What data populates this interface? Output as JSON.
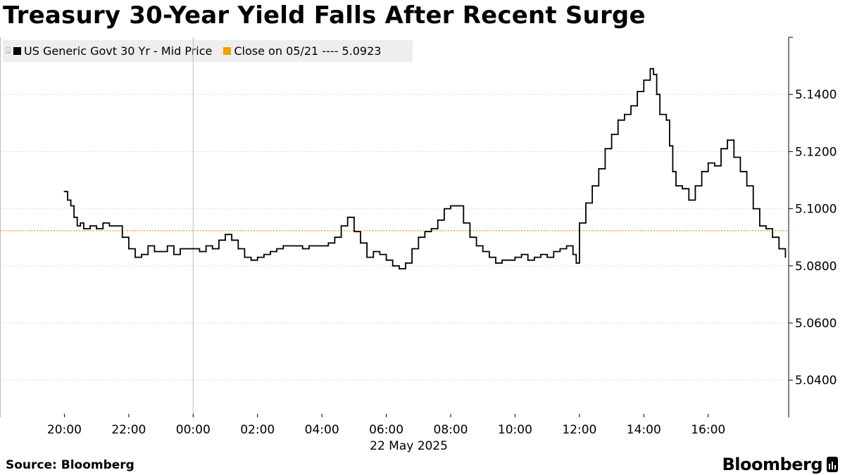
{
  "title": "Treasury 30-Year Yield Falls After Recent Surge",
  "source": "Source: Bloomberg",
  "brand": "Bloomberg",
  "colors": {
    "series": "#000000",
    "close_line": "#f5a000",
    "grid": "#cccccc",
    "legend_bg": "#eeeeee"
  },
  "legend": {
    "series_label": "US Generic Govt 30 Yr - Mid Price",
    "close_label": "Close on 05/21 ---- 5.0923"
  },
  "chart_data": {
    "type": "line",
    "title": "Treasury 30-Year Yield Falls After Recent Surge",
    "xlabel": "22 May 2025",
    "ylabel": "",
    "x_tick_labels": [
      "20:00",
      "22:00",
      "00:00",
      "02:00",
      "04:00",
      "06:00",
      "08:00",
      "10:00",
      "12:00",
      "14:00",
      "16:00"
    ],
    "x_tick_hours": [
      0,
      2,
      4,
      6,
      8,
      10,
      12,
      14,
      16,
      18,
      20
    ],
    "x_date_label": "22 May 2025",
    "x_range_hours_since_20:00": [
      -2,
      22.5
    ],
    "y_tick_labels": [
      "5.0400",
      "5.0600",
      "5.0800",
      "5.1000",
      "5.1200",
      "5.1400"
    ],
    "y_ticks": [
      5.04,
      5.06,
      5.08,
      5.1,
      5.12,
      5.14
    ],
    "ylim": [
      5.027,
      5.16
    ],
    "y_axis_side": "right",
    "grid": "horizontal dotted",
    "reference_line": {
      "name": "Close on 05/21",
      "value": 5.0923
    },
    "series": [
      {
        "name": "US Generic Govt 30 Yr - Mid Price",
        "points": [
          [
            0.0,
            5.106
          ],
          [
            0.1,
            5.103
          ],
          [
            0.2,
            5.101
          ],
          [
            0.3,
            5.097
          ],
          [
            0.4,
            5.094
          ],
          [
            0.5,
            5.095
          ],
          [
            0.6,
            5.093
          ],
          [
            0.8,
            5.094
          ],
          [
            1.0,
            5.093
          ],
          [
            1.2,
            5.095
          ],
          [
            1.4,
            5.094
          ],
          [
            1.6,
            5.094
          ],
          [
            1.8,
            5.09
          ],
          [
            2.0,
            5.086
          ],
          [
            2.2,
            5.083
          ],
          [
            2.4,
            5.084
          ],
          [
            2.6,
            5.087
          ],
          [
            2.8,
            5.085
          ],
          [
            3.0,
            5.085
          ],
          [
            3.2,
            5.087
          ],
          [
            3.4,
            5.084
          ],
          [
            3.6,
            5.086
          ],
          [
            3.8,
            5.086
          ],
          [
            4.0,
            5.086
          ],
          [
            4.2,
            5.085
          ],
          [
            4.4,
            5.087
          ],
          [
            4.6,
            5.086
          ],
          [
            4.8,
            5.089
          ],
          [
            5.0,
            5.091
          ],
          [
            5.2,
            5.089
          ],
          [
            5.4,
            5.086
          ],
          [
            5.6,
            5.083
          ],
          [
            5.8,
            5.082
          ],
          [
            6.0,
            5.083
          ],
          [
            6.2,
            5.084
          ],
          [
            6.4,
            5.085
          ],
          [
            6.6,
            5.086
          ],
          [
            6.8,
            5.087
          ],
          [
            7.0,
            5.087
          ],
          [
            7.2,
            5.087
          ],
          [
            7.4,
            5.086
          ],
          [
            7.6,
            5.087
          ],
          [
            7.8,
            5.087
          ],
          [
            8.0,
            5.087
          ],
          [
            8.2,
            5.088
          ],
          [
            8.4,
            5.09
          ],
          [
            8.6,
            5.094
          ],
          [
            8.8,
            5.097
          ],
          [
            9.0,
            5.092
          ],
          [
            9.2,
            5.088
          ],
          [
            9.4,
            5.083
          ],
          [
            9.6,
            5.085
          ],
          [
            9.8,
            5.084
          ],
          [
            10.0,
            5.082
          ],
          [
            10.2,
            5.08
          ],
          [
            10.4,
            5.079
          ],
          [
            10.6,
            5.081
          ],
          [
            10.8,
            5.086
          ],
          [
            11.0,
            5.09
          ],
          [
            11.2,
            5.092
          ],
          [
            11.4,
            5.093
          ],
          [
            11.6,
            5.096
          ],
          [
            11.8,
            5.1
          ],
          [
            12.0,
            5.101
          ],
          [
            12.2,
            5.101
          ],
          [
            12.4,
            5.095
          ],
          [
            12.6,
            5.09
          ],
          [
            12.8,
            5.087
          ],
          [
            13.0,
            5.085
          ],
          [
            13.2,
            5.083
          ],
          [
            13.4,
            5.081
          ],
          [
            13.6,
            5.082
          ],
          [
            13.8,
            5.082
          ],
          [
            14.0,
            5.083
          ],
          [
            14.2,
            5.084
          ],
          [
            14.4,
            5.082
          ],
          [
            14.6,
            5.083
          ],
          [
            14.8,
            5.084
          ],
          [
            15.0,
            5.083
          ],
          [
            15.2,
            5.085
          ],
          [
            15.4,
            5.086
          ],
          [
            15.6,
            5.087
          ],
          [
            15.8,
            5.084
          ],
          [
            15.9,
            5.081
          ],
          [
            16.0,
            5.095
          ],
          [
            16.2,
            5.102
          ],
          [
            16.4,
            5.108
          ],
          [
            16.6,
            5.114
          ],
          [
            16.8,
            5.121
          ],
          [
            17.0,
            5.126
          ],
          [
            17.2,
            5.131
          ],
          [
            17.4,
            5.133
          ],
          [
            17.6,
            5.136
          ],
          [
            17.8,
            5.141
          ],
          [
            18.0,
            5.145
          ],
          [
            18.2,
            5.149
          ],
          [
            18.3,
            5.147
          ],
          [
            18.4,
            5.14
          ],
          [
            18.5,
            5.133
          ],
          [
            18.7,
            5.131
          ],
          [
            18.8,
            5.122
          ],
          [
            18.9,
            5.113
          ],
          [
            19.0,
            5.108
          ],
          [
            19.2,
            5.107
          ],
          [
            19.4,
            5.103
          ],
          [
            19.6,
            5.108
          ],
          [
            19.8,
            5.113
          ],
          [
            20.0,
            5.116
          ],
          [
            20.2,
            5.115
          ],
          [
            20.4,
            5.121
          ],
          [
            20.6,
            5.124
          ],
          [
            20.8,
            5.118
          ],
          [
            21.0,
            5.113
          ],
          [
            21.2,
            5.108
          ],
          [
            21.4,
            5.1
          ],
          [
            21.6,
            5.094
          ],
          [
            21.8,
            5.093
          ],
          [
            22.0,
            5.09
          ],
          [
            22.2,
            5.086
          ],
          [
            22.4,
            5.083
          ]
        ]
      }
    ]
  }
}
